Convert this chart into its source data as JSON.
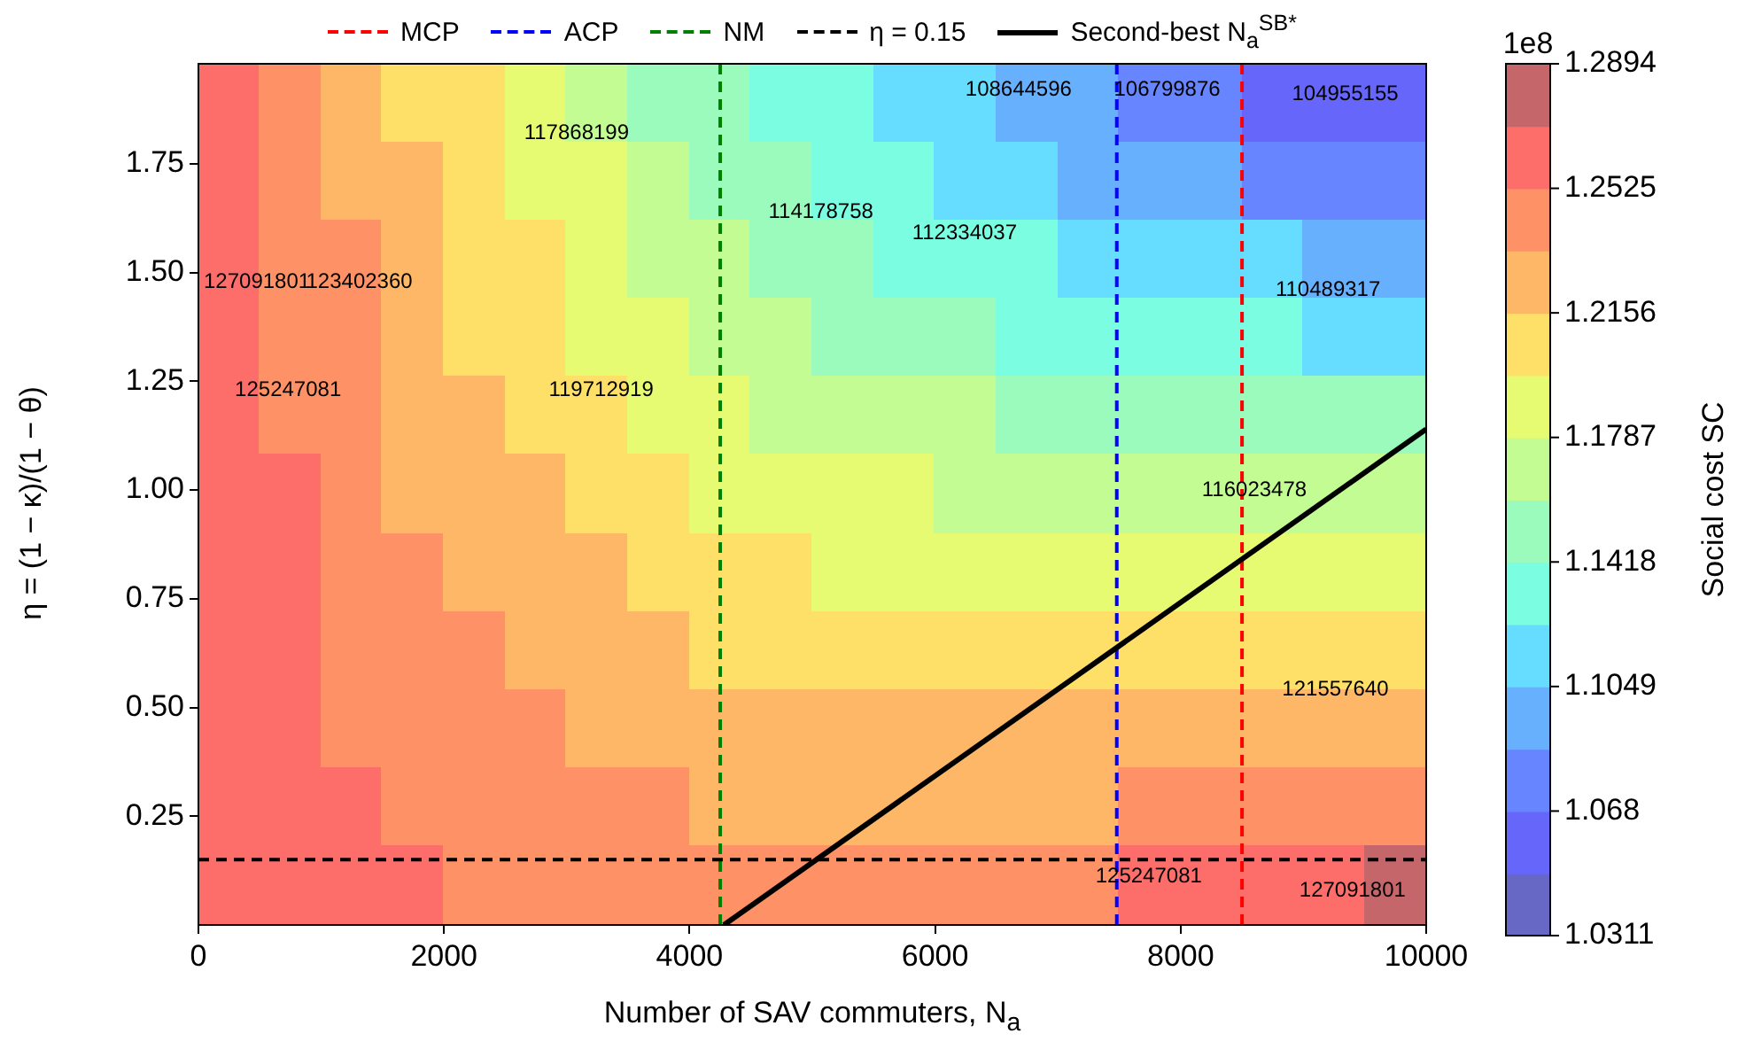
{
  "chart_data": {
    "type": "heatmap",
    "xlabel": "Number of SAV commuters, N$_{a}$",
    "ylabel": "η = (1 − κ)/(1 − θ)",
    "clabel": "Social cost SC",
    "x": [
      250,
      750,
      1250,
      1750,
      2250,
      2750,
      3250,
      3750,
      4250,
      4750,
      5250,
      5750,
      6250,
      6750,
      7250,
      7750,
      8250,
      8750,
      9250,
      9750
    ],
    "y": [
      1.89,
      1.71,
      1.53,
      1.35,
      1.17,
      0.99,
      0.81,
      0.63,
      0.45,
      0.27,
      0.09
    ],
    "cells": [
      [
        1.262,
        1.245,
        1.229,
        1.214,
        1.199,
        1.185,
        1.172,
        1.159,
        1.147,
        1.136,
        1.125,
        1.114,
        1.105,
        1.096,
        1.087,
        1.08,
        1.073,
        1.066,
        1.06,
        1.055
      ],
      [
        1.262,
        1.247,
        1.232,
        1.218,
        1.204,
        1.191,
        1.179,
        1.168,
        1.157,
        1.146,
        1.136,
        1.127,
        1.119,
        1.111,
        1.104,
        1.097,
        1.091,
        1.086,
        1.081,
        1.077
      ],
      [
        1.263,
        1.248,
        1.235,
        1.222,
        1.209,
        1.198,
        1.187,
        1.176,
        1.166,
        1.157,
        1.148,
        1.14,
        1.133,
        1.126,
        1.12,
        1.115,
        1.11,
        1.105,
        1.102,
        1.099
      ],
      [
        1.263,
        1.25,
        1.238,
        1.226,
        1.214,
        1.204,
        1.194,
        1.184,
        1.176,
        1.168,
        1.16,
        1.153,
        1.147,
        1.141,
        1.136,
        1.132,
        1.128,
        1.125,
        1.123,
        1.121
      ],
      [
        1.264,
        1.252,
        1.24,
        1.23,
        1.22,
        1.21,
        1.201,
        1.193,
        1.185,
        1.178,
        1.172,
        1.166,
        1.161,
        1.157,
        1.153,
        1.149,
        1.147,
        1.145,
        1.143,
        1.143
      ],
      [
        1.264,
        1.253,
        1.243,
        1.234,
        1.225,
        1.216,
        1.208,
        1.201,
        1.195,
        1.189,
        1.184,
        1.179,
        1.175,
        1.172,
        1.169,
        1.167,
        1.165,
        1.164,
        1.164,
        1.165
      ],
      [
        1.265,
        1.255,
        1.246,
        1.238,
        1.23,
        1.222,
        1.216,
        1.21,
        1.204,
        1.2,
        1.196,
        1.192,
        1.189,
        1.187,
        1.185,
        1.184,
        1.184,
        1.184,
        1.185,
        1.187
      ],
      [
        1.265,
        1.257,
        1.249,
        1.241,
        1.235,
        1.229,
        1.223,
        1.218,
        1.214,
        1.21,
        1.207,
        1.205,
        1.203,
        1.202,
        1.202,
        1.202,
        1.202,
        1.204,
        1.206,
        1.208
      ],
      [
        1.266,
        1.259,
        1.252,
        1.245,
        1.24,
        1.235,
        1.23,
        1.227,
        1.224,
        1.221,
        1.219,
        1.218,
        1.217,
        1.217,
        1.218,
        1.219,
        1.221,
        1.224,
        1.227,
        1.23
      ],
      [
        1.267,
        1.26,
        1.254,
        1.249,
        1.245,
        1.241,
        1.238,
        1.235,
        1.233,
        1.232,
        1.231,
        1.231,
        1.231,
        1.233,
        1.234,
        1.237,
        1.24,
        1.243,
        1.247,
        1.252
      ],
      [
        1.267,
        1.262,
        1.257,
        1.253,
        1.25,
        1.247,
        1.245,
        1.244,
        1.243,
        1.242,
        1.243,
        1.244,
        1.245,
        1.248,
        1.251,
        1.254,
        1.258,
        1.263,
        1.268,
        1.274
      ]
    ],
    "colors": [
      "#6767c6",
      "#6666fb",
      "#6685fe",
      "#66b0fe",
      "#66ddfe",
      "#7afde0",
      "#9bfbbd",
      "#c2fc93",
      "#e6fb72",
      "#fedf68",
      "#feb766",
      "#fe9266",
      "#fd6e6a",
      "#c4666a"
    ],
    "clim": [
      1.0311,
      1.2894
    ],
    "cticks": [
      1.0311,
      1.068,
      1.1049,
      1.1418,
      1.1787,
      1.2156,
      1.2525,
      1.2894
    ],
    "xlim": [
      0,
      10000
    ],
    "xticks": [
      0,
      2000,
      4000,
      6000,
      8000,
      10000
    ],
    "ylim": [
      0,
      1.98
    ],
    "yticks": [
      0.25,
      {
        "value": 0.5,
        "label": "0.50"
      },
      0.75,
      {
        "value": 1,
        "label": "1.00"
      },
      1.25,
      {
        "value": 1.5,
        "label": "1.50"
      },
      1.75
    ],
    "series": [
      {
        "type": "line",
        "name": "Second-best N$_{a}$$^{SB*}$",
        "color": "#000000",
        "x": [
          4280,
          10000
        ],
        "values": [
          0,
          1.14
        ]
      }
    ],
    "ref_lines": [
      {
        "axis": "x",
        "value": 8500,
        "label": "MCP",
        "color": "#ff0000",
        "line_style": "dashed"
      },
      {
        "axis": "x",
        "value": 7480,
        "label": "ACP",
        "color": "#0000ff",
        "line_style": "dashed"
      },
      {
        "axis": "x",
        "value": 4250,
        "label": "NM",
        "color": "#008000",
        "line_style": "dashed"
      },
      {
        "axis": "y",
        "value": 0.15,
        "label": "η = 0.15",
        "color": "#000000",
        "line_style": "dashed"
      }
    ],
    "legend": "top",
    "annotations": [
      "1e8",
      "127091801",
      "125247081",
      "123402360",
      "119712919",
      "117868199",
      "114178758",
      "112334037",
      "108644596",
      "106799876",
      "104955155",
      "110489317",
      "116023478",
      "121557640",
      "125247081",
      "127091801"
    ]
  }
}
